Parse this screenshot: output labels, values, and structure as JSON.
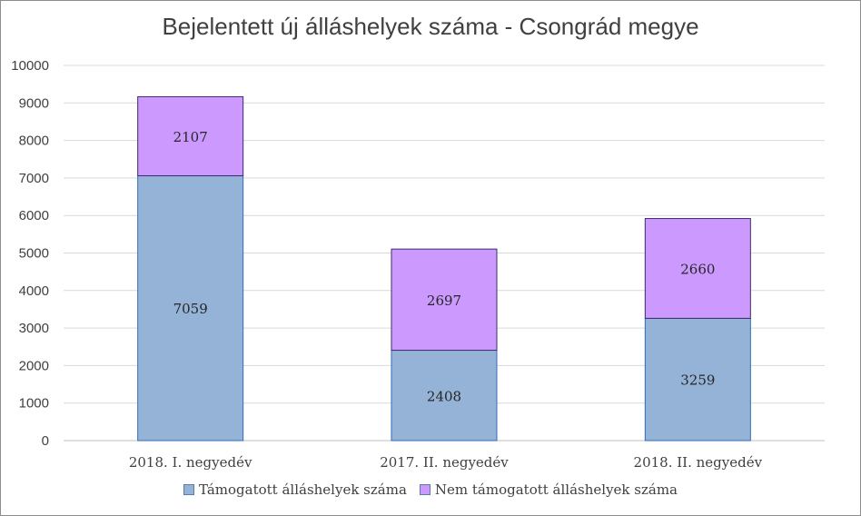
{
  "chart_data": {
    "type": "bar",
    "stacked": true,
    "title": "Bejelentett új álláshelyek száma - Csongrád megye",
    "xlabel": "",
    "ylabel": "",
    "ylim": [
      0,
      10000
    ],
    "yticks": [
      0,
      1000,
      2000,
      3000,
      4000,
      5000,
      6000,
      7000,
      8000,
      9000,
      10000
    ],
    "grid": true,
    "legend_position": "bottom",
    "categories": [
      "2018. I. negyedév",
      "2017. II. negyedév",
      "2018. II. negyedév"
    ],
    "series": [
      {
        "name": "Támogatott álláshelyek száma",
        "values": [
          7059,
          2408,
          3259
        ],
        "color": "#95b3d7"
      },
      {
        "name": "Nem támogatott álláshelyek száma",
        "values": [
          2107,
          2697,
          2660
        ],
        "color": "#cc99ff"
      }
    ]
  }
}
